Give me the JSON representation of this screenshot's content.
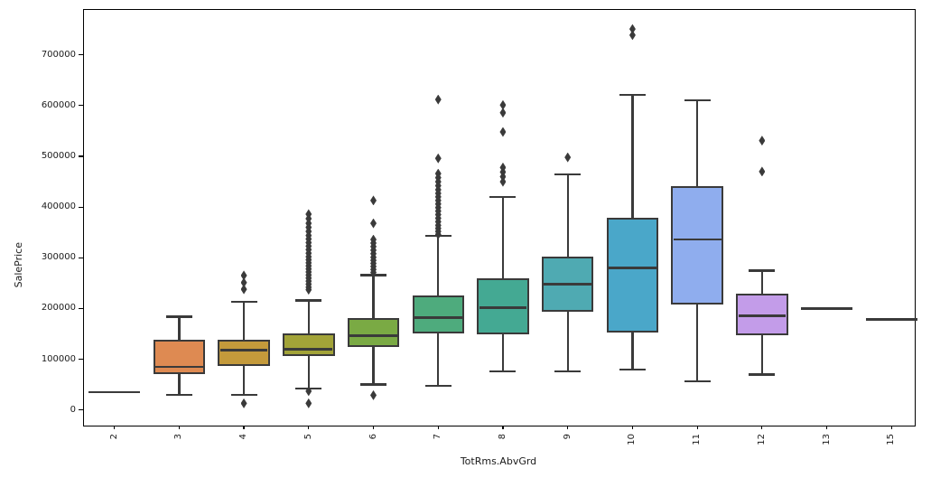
{
  "figure": {
    "background": "#ffffff",
    "axis_color": "#000000",
    "box_edge_color": "#3a3a3a",
    "marker_color": "#3a3a3a"
  },
  "chart_data": {
    "type": "boxplot",
    "title": "",
    "xlabel": "TotRms.AbvGrd",
    "ylabel": "SalePrice",
    "ylim": [
      -28000,
      789000
    ],
    "grid": false,
    "legend": "none",
    "yticks": [
      {
        "label": "0",
        "value": 0
      },
      {
        "label": "100000",
        "value": 100000
      },
      {
        "label": "200000",
        "value": 200000
      },
      {
        "label": "300000",
        "value": 300000
      },
      {
        "label": "400000",
        "value": 400000
      },
      {
        "label": "500000",
        "value": 500000
      },
      {
        "label": "600000",
        "value": 600000
      },
      {
        "label": "700000",
        "value": 700000
      }
    ],
    "categories": [
      "2",
      "3",
      "4",
      "5",
      "6",
      "7",
      "8",
      "9",
      "10",
      "11",
      "12",
      "13",
      "15"
    ],
    "boxes": [
      {
        "label": "2",
        "type": "line",
        "value": 35000,
        "color": null
      },
      {
        "label": "3",
        "type": "box",
        "color": "#de8a52",
        "whisker_low": 30000,
        "q1": 70000,
        "median": 85000,
        "q3": 139000,
        "whisker_high": 184000,
        "outliers_high": [],
        "outliers_low": []
      },
      {
        "label": "4",
        "type": "box",
        "color": "#c49a3b",
        "whisker_low": 30000,
        "q1": 87000,
        "median": 118000,
        "q3": 139000,
        "whisker_high": 213000,
        "outliers_high": [
          265000,
          251000,
          238000
        ],
        "outliers_low": [
          13000
        ]
      },
      {
        "label": "5",
        "type": "box",
        "color": "#a2a338",
        "whisker_low": 42000,
        "q1": 106000,
        "median": 120000,
        "q3": 151000,
        "whisker_high": 216000,
        "outliers_high": [
          386000,
          377000,
          368000,
          360000,
          352000,
          344000,
          337000,
          330000,
          323000,
          316000,
          309000,
          302000,
          296000,
          290000,
          284000,
          278000,
          272000,
          266000,
          260000,
          254000,
          248000,
          242000,
          237000
        ],
        "outliers_low": [
          37000,
          13000
        ]
      },
      {
        "label": "6",
        "type": "box",
        "color": "#7aaa44",
        "whisker_low": 50000,
        "q1": 125000,
        "median": 147000,
        "q3": 181000,
        "whisker_high": 266000,
        "outliers_high": [
          413000,
          368000,
          336000,
          329000,
          322000,
          315000,
          308000,
          301000,
          295000,
          289000,
          283000,
          277000,
          271000
        ],
        "outliers_low": [
          29000
        ]
      },
      {
        "label": "7",
        "type": "box",
        "color": "#4eab7d",
        "whisker_low": 48000,
        "q1": 150000,
        "median": 182000,
        "q3": 226000,
        "whisker_high": 343000,
        "outliers_high": [
          612000,
          496000,
          466000,
          458000,
          450000,
          442000,
          434000,
          427000,
          420000,
          413000,
          406000,
          399000,
          392000,
          385000,
          378000,
          371000,
          364000,
          358000,
          352000,
          346000
        ],
        "outliers_low": []
      },
      {
        "label": "8",
        "type": "box",
        "color": "#44a993",
        "whisker_low": 76000,
        "q1": 149000,
        "median": 201000,
        "q3": 259000,
        "whisker_high": 420000,
        "outliers_high": [
          601000,
          586000,
          548000,
          478000,
          469000,
          460000,
          450000
        ],
        "outliers_low": []
      },
      {
        "label": "9",
        "type": "box",
        "color": "#4faab2",
        "whisker_low": 76000,
        "q1": 193000,
        "median": 248000,
        "q3": 302000,
        "whisker_high": 464000,
        "outliers_high": [
          498000
        ],
        "outliers_low": []
      },
      {
        "label": "10",
        "type": "box",
        "color": "#4aa7c9",
        "whisker_low": 80000,
        "q1": 153000,
        "median": 280000,
        "q3": 379000,
        "whisker_high": 621000,
        "outliers_high": [
          751000,
          739000
        ],
        "outliers_low": []
      },
      {
        "label": "11",
        "type": "box",
        "color": "#8fadee",
        "whisker_low": 56000,
        "q1": 208000,
        "median": 336000,
        "q3": 442000,
        "whisker_high": 610000,
        "outliers_high": [],
        "outliers_low": []
      },
      {
        "label": "12",
        "type": "box",
        "color": "#c39ce9",
        "whisker_low": 70000,
        "q1": 148000,
        "median": 186000,
        "q3": 230000,
        "whisker_high": 275000,
        "outliers_high": [
          531000,
          470000
        ],
        "outliers_low": []
      },
      {
        "label": "13",
        "type": "line",
        "value": 200000,
        "color": null
      },
      {
        "label": "15",
        "type": "line",
        "value": 179000,
        "color": null
      }
    ]
  }
}
